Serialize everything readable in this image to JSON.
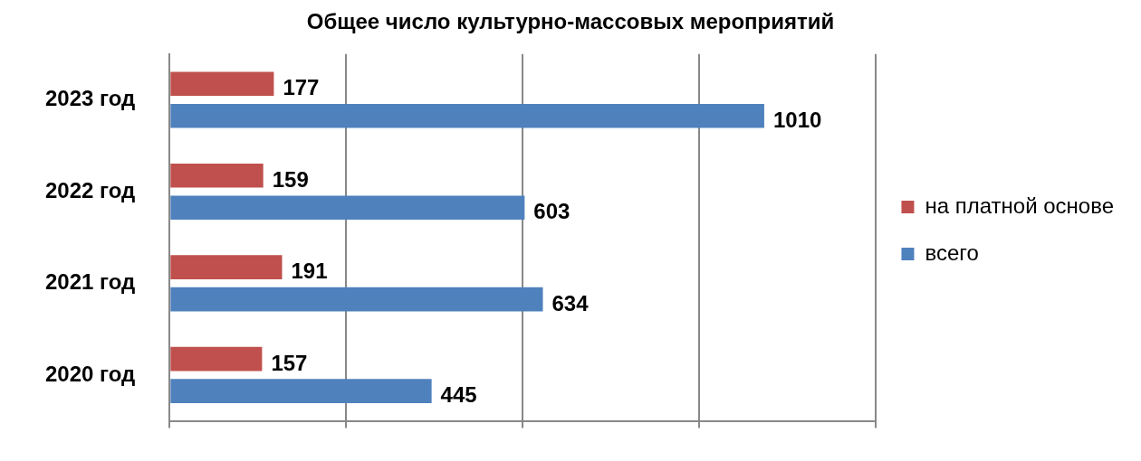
{
  "chart_data": {
    "type": "bar",
    "orientation": "horizontal",
    "title": "Общее число культурно-массовых мероприятий",
    "categories": [
      "2023 год",
      "2022 год",
      "2021 год",
      "2020 год"
    ],
    "series": [
      {
        "name": "на платной основе",
        "color": "#c0504d",
        "values": [
          177,
          159,
          191,
          157
        ]
      },
      {
        "name": "всего",
        "color": "#4f81bd",
        "values": [
          1010,
          603,
          634,
          445
        ]
      }
    ],
    "xlim": [
      0,
      1200
    ],
    "xticks": [
      {
        "value": 0,
        "label": null
      },
      {
        "value": 300,
        "label": null
      },
      {
        "value": 600,
        "label": null
      },
      {
        "value": 900,
        "label": null
      },
      {
        "value": 1200,
        "label": null
      }
    ],
    "grid": "x",
    "legend": "right",
    "data_labels": true
  }
}
